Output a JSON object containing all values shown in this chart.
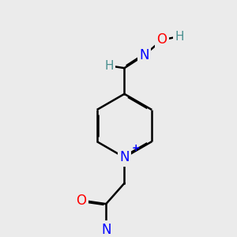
{
  "bg_color": "#ebebeb",
  "bond_color": "#000000",
  "bond_width": 1.8,
  "atom_colors": {
    "N": "#0000ff",
    "O": "#ff0000",
    "H": "#4a9090"
  },
  "font_size_atom": 12,
  "font_size_H": 11,
  "font_size_plus": 9
}
